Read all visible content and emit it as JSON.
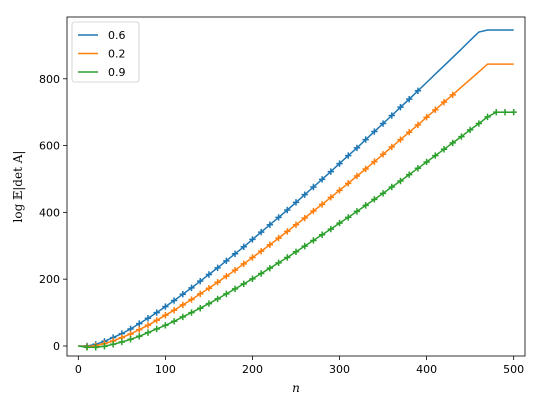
{
  "chart_data": {
    "type": "line",
    "xlabel": "n",
    "ylabel": "log 𝔼|det A|",
    "xlim": [
      -13,
      513
    ],
    "ylim": [
      -30,
      985
    ],
    "xticks": [
      0,
      100,
      200,
      300,
      400,
      500
    ],
    "yticks": [
      0,
      200,
      400,
      600,
      800
    ],
    "legend_position": "top-left",
    "grid": false,
    "series": [
      {
        "name": "0.6",
        "color": "#1f77b4",
        "line": {
          "x": [
            0,
            10,
            20,
            30,
            40,
            50,
            60,
            70,
            80,
            90,
            100,
            110,
            120,
            130,
            140,
            150,
            160,
            170,
            180,
            190,
            200,
            210,
            220,
            230,
            240,
            250,
            260,
            270,
            280,
            290,
            300,
            310,
            320,
            330,
            340,
            350,
            360,
            370,
            380,
            390,
            400,
            410,
            420,
            430,
            440,
            450,
            460,
            470,
            480,
            490,
            500
          ],
          "y": [
            0,
            0,
            5,
            14,
            25,
            37,
            51,
            67,
            83,
            100,
            118,
            136,
            155,
            174,
            194,
            214,
            234,
            255,
            276,
            297,
            319,
            341,
            363,
            385,
            407,
            430,
            453,
            476,
            499,
            522,
            546,
            570,
            593,
            618,
            642,
            666,
            690,
            715,
            739,
            764,
            789,
            814,
            839,
            864,
            889,
            915,
            940,
            946,
            946,
            946,
            946
          ]
        },
        "markers": {
          "x": [
            10,
            20,
            30,
            40,
            50,
            60,
            70,
            80,
            90,
            100,
            110,
            120,
            130,
            140,
            150,
            160,
            170,
            180,
            190,
            200,
            210,
            220,
            230,
            240,
            250,
            260,
            270,
            280,
            290,
            300,
            310,
            320,
            330,
            340,
            350,
            360,
            370,
            380,
            390
          ],
          "y": [
            0,
            5,
            14,
            25,
            37,
            51,
            67,
            83,
            100,
            118,
            136,
            155,
            174,
            194,
            214,
            234,
            255,
            276,
            297,
            319,
            341,
            363,
            385,
            407,
            430,
            453,
            476,
            499,
            522,
            546,
            570,
            593,
            618,
            642,
            666,
            690,
            715,
            739,
            764
          ]
        }
      },
      {
        "name": "0.2",
        "color": "#ff7f0e",
        "line": {
          "x": [
            0,
            10,
            20,
            30,
            40,
            50,
            60,
            70,
            80,
            90,
            100,
            110,
            120,
            130,
            140,
            150,
            160,
            170,
            180,
            190,
            200,
            210,
            220,
            230,
            240,
            250,
            260,
            270,
            280,
            290,
            300,
            310,
            320,
            330,
            340,
            350,
            360,
            370,
            380,
            390,
            400,
            410,
            420,
            430,
            440,
            450,
            460,
            470,
            480,
            490,
            500
          ],
          "y": [
            0,
            -2,
            1,
            7,
            15,
            25,
            36,
            49,
            62,
            77,
            92,
            107,
            123,
            139,
            156,
            173,
            191,
            209,
            227,
            246,
            265,
            284,
            303,
            323,
            343,
            363,
            383,
            404,
            424,
            445,
            466,
            487,
            509,
            530,
            552,
            574,
            596,
            618,
            640,
            662,
            685,
            707,
            730,
            752,
            775,
            798,
            821,
            844,
            844,
            844,
            844
          ]
        },
        "markers": {
          "x": [
            10,
            20,
            30,
            40,
            50,
            60,
            70,
            80,
            90,
            100,
            110,
            120,
            130,
            140,
            150,
            160,
            170,
            180,
            190,
            200,
            210,
            220,
            230,
            240,
            250,
            260,
            270,
            280,
            290,
            300,
            310,
            320,
            330,
            340,
            350,
            360,
            370,
            380,
            390,
            400,
            410,
            420,
            430
          ],
          "y": [
            -2,
            1,
            7,
            15,
            25,
            36,
            49,
            62,
            77,
            92,
            107,
            123,
            139,
            156,
            173,
            191,
            209,
            227,
            246,
            265,
            284,
            303,
            323,
            343,
            363,
            383,
            404,
            424,
            445,
            466,
            487,
            509,
            530,
            552,
            574,
            596,
            618,
            640,
            662,
            685,
            707,
            730,
            752
          ]
        }
      },
      {
        "name": "0.9",
        "color": "#2ca02c",
        "line": {
          "x": [
            0,
            10,
            20,
            30,
            40,
            50,
            60,
            70,
            80,
            90,
            100,
            110,
            120,
            130,
            140,
            150,
            160,
            170,
            180,
            190,
            200,
            210,
            220,
            230,
            240,
            250,
            260,
            270,
            280,
            290,
            300,
            310,
            320,
            330,
            340,
            350,
            360,
            370,
            380,
            390,
            400,
            410,
            420,
            430,
            440,
            450,
            460,
            470,
            480,
            490,
            500
          ],
          "y": [
            0,
            -4,
            -4,
            -1,
            5,
            12,
            20,
            29,
            40,
            51,
            62,
            74,
            87,
            100,
            113,
            127,
            141,
            156,
            171,
            186,
            201,
            217,
            233,
            249,
            265,
            282,
            299,
            316,
            333,
            350,
            368,
            385,
            403,
            421,
            439,
            457,
            476,
            494,
            513,
            532,
            551,
            570,
            589,
            608,
            627,
            647,
            666,
            686,
            700,
            700,
            700
          ]
        },
        "markers": {
          "x": [
            10,
            20,
            30,
            40,
            50,
            60,
            70,
            80,
            90,
            100,
            110,
            120,
            130,
            140,
            150,
            160,
            170,
            180,
            190,
            200,
            210,
            220,
            230,
            240,
            250,
            260,
            270,
            280,
            290,
            300,
            310,
            320,
            330,
            340,
            350,
            360,
            370,
            380,
            390,
            400,
            410,
            420,
            430,
            440,
            450,
            460,
            470,
            480,
            490,
            500
          ],
          "y": [
            -4,
            -4,
            -1,
            5,
            12,
            20,
            29,
            40,
            51,
            62,
            74,
            87,
            100,
            113,
            127,
            141,
            156,
            171,
            186,
            201,
            217,
            233,
            249,
            265,
            282,
            299,
            316,
            333,
            350,
            368,
            385,
            403,
            421,
            439,
            457,
            476,
            494,
            513,
            532,
            551,
            570,
            589,
            608,
            627,
            647,
            666,
            686,
            700,
            700,
            700
          ]
        }
      }
    ]
  }
}
